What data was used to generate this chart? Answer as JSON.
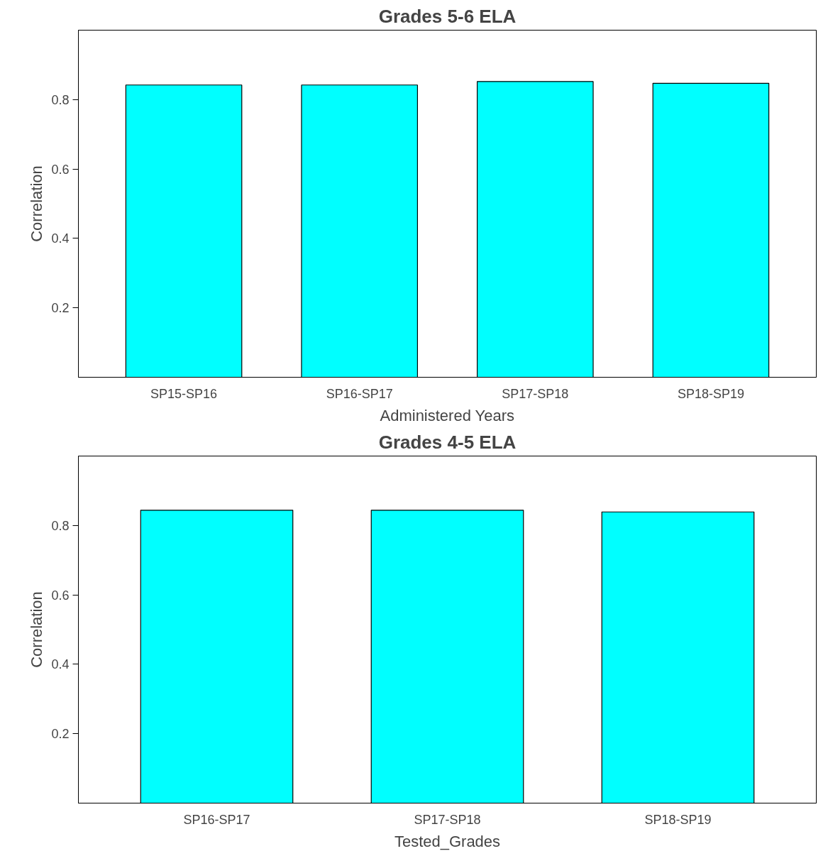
{
  "chart_data": [
    {
      "type": "bar",
      "title": "Grades 5-6 ELA",
      "xlabel": "Administered Years",
      "ylabel": "Correlation",
      "categories": [
        "SP15-SP16",
        "SP16-SP17",
        "SP17-SP18",
        "SP18-SP19"
      ],
      "values": [
        0.842,
        0.842,
        0.852,
        0.847
      ],
      "color": "#00ffff",
      "ylim": [
        0,
        1
      ],
      "yticks": [
        0.2,
        0.4,
        0.6,
        0.8
      ],
      "grid": false
    },
    {
      "type": "bar",
      "title": "Grades 4-5 ELA",
      "xlabel": "Tested_Grades",
      "ylabel": "Correlation",
      "categories": [
        "SP16-SP17",
        "SP17-SP18",
        "SP18-SP19"
      ],
      "values": [
        0.844,
        0.844,
        0.839
      ],
      "color": "#00ffff",
      "ylim": [
        0,
        1
      ],
      "yticks": [
        0.2,
        0.4,
        0.6,
        0.8
      ],
      "grid": false
    }
  ]
}
